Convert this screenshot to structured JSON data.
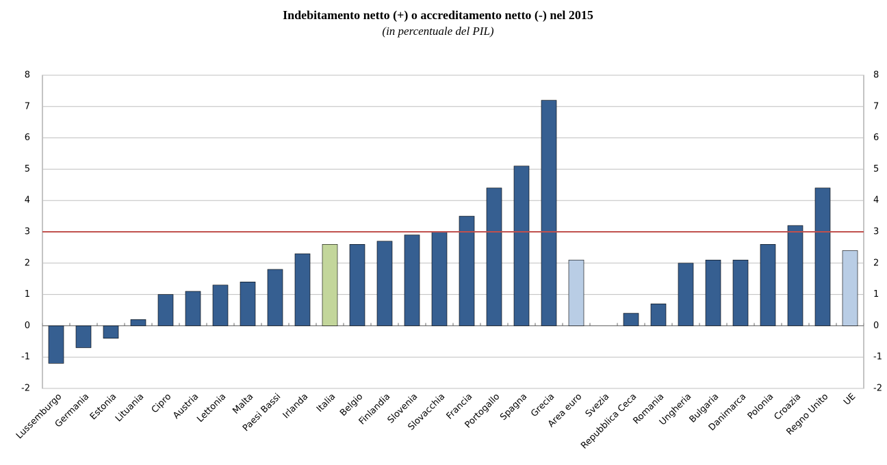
{
  "chart_data": {
    "type": "bar",
    "title": "Indebitamento netto (+) o accreditamento netto (-) nel 2015",
    "subtitle": "(in percentuale del PIL)",
    "categories": [
      "Lussemburgo",
      "Germania",
      "Estonia",
      "Lituania",
      "Cipro",
      "Austria",
      "Lettonia",
      "Malta",
      "Paesi Bassi",
      "Irlanda",
      "Italia",
      "Belgio",
      "Finlandia",
      "Slovenia",
      "Slovacchia",
      "Francia",
      "Portogallo",
      "Spagna",
      "Grecia",
      "Area euro",
      "Svezia",
      "Repubblica Ceca",
      "Romania",
      "Ungheria",
      "Bulgaria",
      "Danimarca",
      "Polonia",
      "Croazia",
      "Regno Unito",
      "UE"
    ],
    "values": [
      -1.2,
      -0.7,
      -0.4,
      0.2,
      1.0,
      1.1,
      1.3,
      1.4,
      1.8,
      2.3,
      2.6,
      2.6,
      2.7,
      2.9,
      3.0,
      3.5,
      4.4,
      5.1,
      7.2,
      2.1,
      0,
      0.4,
      0.7,
      2.0,
      2.1,
      2.1,
      2.6,
      3.2,
      4.4,
      2.4
    ],
    "colors": [
      "#365f91",
      "#365f91",
      "#365f91",
      "#365f91",
      "#365f91",
      "#365f91",
      "#365f91",
      "#365f91",
      "#365f91",
      "#365f91",
      "#c3d69b",
      "#365f91",
      "#365f91",
      "#365f91",
      "#365f91",
      "#365f91",
      "#365f91",
      "#365f91",
      "#365f91",
      "#b9cde5",
      "#365f91",
      "#365f91",
      "#365f91",
      "#365f91",
      "#365f91",
      "#365f91",
      "#365f91",
      "#365f91",
      "#365f91",
      "#b9cde5"
    ],
    "reference_line": {
      "value": 3,
      "color": "#c0504d"
    },
    "ylim": [
      -2,
      8
    ],
    "yticks": [
      -2,
      -1,
      0,
      1,
      2,
      3,
      4,
      5,
      6,
      7,
      8
    ],
    "grid": true
  }
}
